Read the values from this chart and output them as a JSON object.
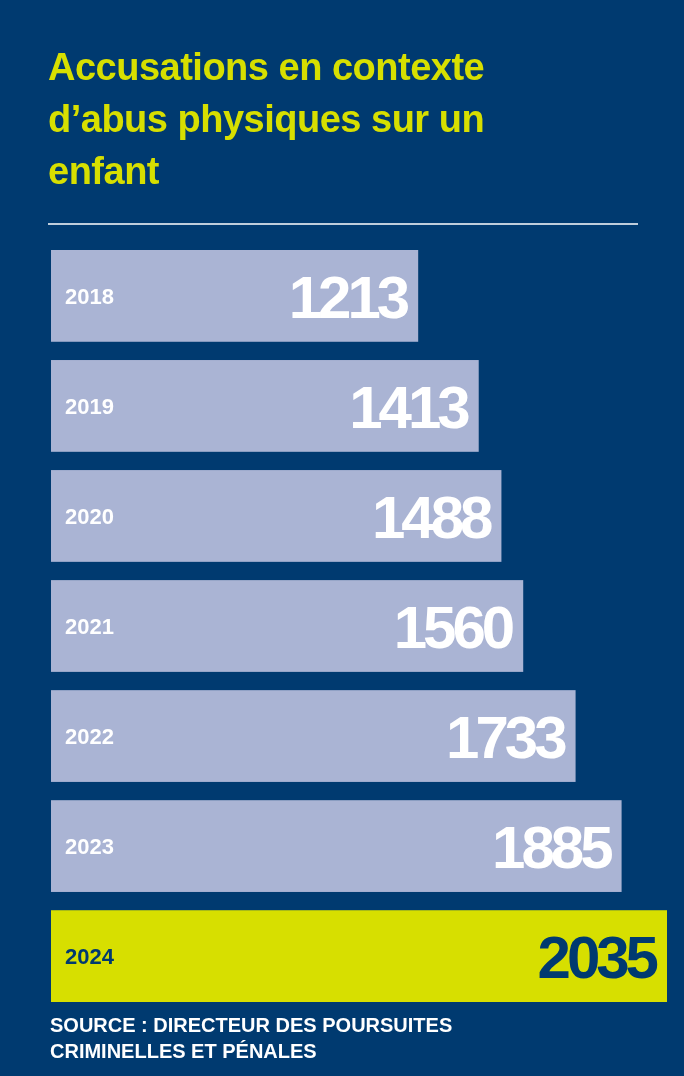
{
  "chart_data": {
    "type": "bar",
    "orientation": "horizontal",
    "title": "Accusations en contexte d’abus physiques sur un enfant",
    "categories": [
      "2018",
      "2019",
      "2020",
      "2021",
      "2022",
      "2023",
      "2024"
    ],
    "values": [
      1213,
      1413,
      1488,
      1560,
      1733,
      1885,
      2035
    ],
    "colors": [
      "#aab4d4",
      "#aab4d4",
      "#aab4d4",
      "#aab4d4",
      "#aab4d4",
      "#aab4d4",
      "#d7df00"
    ],
    "data_labels": true,
    "annotations": [
      "SOURCE : DIRECTEUR DES POURSUITES CRIMINELLES ET PÉNALES"
    ]
  }
}
